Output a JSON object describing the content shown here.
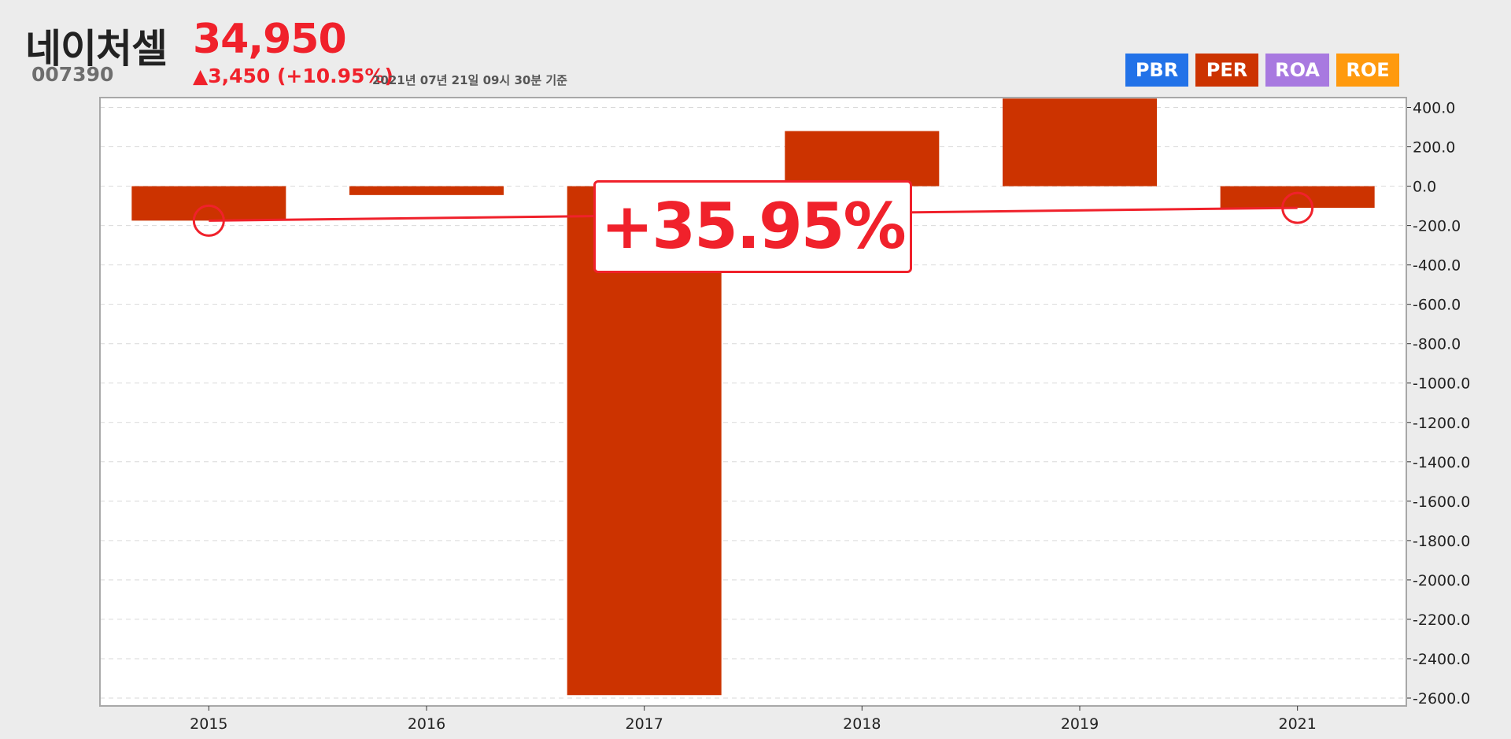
{
  "header": {
    "stock_name": "네이처셀",
    "stock_code": "007390",
    "price": "34,950",
    "change": "▲3,450 (+10.95%)",
    "timestamp": "2021년 07년 21일 09시 30분 기준"
  },
  "legend": [
    {
      "label": "PBR",
      "color": "#2272e8"
    },
    {
      "label": "PER",
      "color": "#cc3300"
    },
    {
      "label": "ROA",
      "color": "#a879e0"
    },
    {
      "label": "ROE",
      "color": "#ff9a0e"
    }
  ],
  "callout": {
    "text": "+35.95%"
  },
  "colors": {
    "bar": "#cc3300",
    "trend": "#f0212b",
    "grid": "#d9d9d9"
  },
  "chart_data": {
    "type": "bar",
    "categories": [
      "2015",
      "2016",
      "2017",
      "2018",
      "2019",
      "2021"
    ],
    "series": [
      {
        "values": [
          -175,
          -45,
          -2585,
          280,
          445,
          -110
        ]
      }
    ],
    "trend_line": {
      "from": {
        "x": "2015",
        "y": -175
      },
      "to": {
        "x": "2021",
        "y": -110
      }
    },
    "ylim": [
      -2640,
      450
    ],
    "yticks": [
      400,
      200,
      0,
      -200,
      -400,
      -600,
      -800,
      -1000,
      -1200,
      -1400,
      -1600,
      -1800,
      -2000,
      -2200,
      -2400,
      -2600
    ],
    "ytick_labels": [
      "400.0",
      "200.0",
      "0.0",
      "-200.0",
      "-400.0",
      "-600.0",
      "-800.0",
      "-1000.0",
      "-1200.0",
      "-1400.0",
      "-1600.0",
      "-1800.0",
      "-2000.0",
      "-2200.0",
      "-2400.0",
      "-2600.0"
    ],
    "grid": true,
    "y_axis_side": "right",
    "xlabel": "",
    "ylabel": ""
  }
}
